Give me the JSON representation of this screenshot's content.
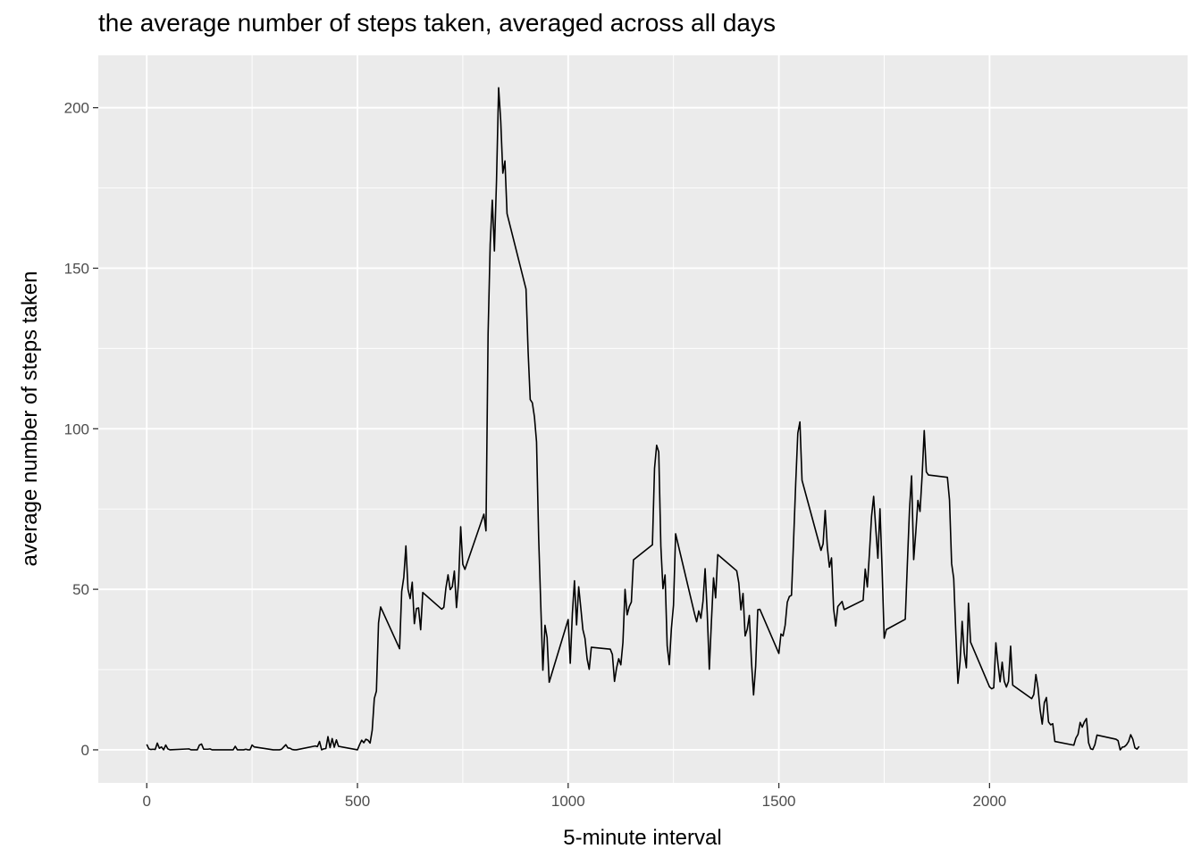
{
  "chart_data": {
    "type": "line",
    "title": "the average number of steps taken, averaged across all days",
    "xlabel": "5-minute interval",
    "ylabel": "average number of steps taken",
    "xlim": [
      -115,
      2470
    ],
    "ylim": [
      -10.3,
      216.3
    ],
    "x_ticks": [
      0,
      500,
      1000,
      1500,
      2000
    ],
    "x_tick_labels": [
      "0",
      "500",
      "1000",
      "1500",
      "2000"
    ],
    "y_ticks": [
      0,
      50,
      100,
      150,
      200
    ],
    "y_tick_labels": [
      "0",
      "50",
      "100",
      "150",
      "200"
    ],
    "grid": true,
    "legend": "none",
    "colors": {
      "panel_bg": "#ebebeb",
      "grid": "#ffffff",
      "line": "#000000",
      "tick_text": "#4d4d4d"
    },
    "series": [
      {
        "x": [
          0,
          5,
          10,
          15,
          20,
          25,
          30,
          35,
          40,
          45,
          50,
          55,
          100,
          105,
          110,
          115,
          120,
          125,
          130,
          135,
          140,
          145,
          150,
          155,
          200,
          205,
          210,
          215,
          220,
          225,
          230,
          235,
          240,
          245,
          250,
          255,
          300,
          305,
          310,
          315,
          320,
          325,
          330,
          335,
          340,
          345,
          350,
          355,
          400,
          405,
          410,
          415,
          420,
          425,
          430,
          435,
          440,
          445,
          450,
          455,
          500,
          505,
          510,
          515,
          520,
          525,
          530,
          535,
          540,
          545,
          550,
          555,
          600,
          605,
          610,
          615,
          620,
          625,
          630,
          635,
          640,
          645,
          650,
          655,
          700,
          705,
          710,
          715,
          720,
          725,
          730,
          735,
          740,
          745,
          750,
          755,
          800,
          805,
          810,
          815,
          820,
          825,
          830,
          835,
          840,
          845,
          850,
          855,
          900,
          905,
          910,
          915,
          920,
          925,
          930,
          935,
          940,
          945,
          950,
          955,
          1000,
          1005,
          1010,
          1015,
          1020,
          1025,
          1030,
          1035,
          1040,
          1045,
          1050,
          1055,
          1100,
          1105,
          1110,
          1115,
          1120,
          1125,
          1130,
          1135,
          1140,
          1145,
          1150,
          1155,
          1200,
          1205,
          1210,
          1215,
          1220,
          1225,
          1230,
          1235,
          1240,
          1245,
          1250,
          1255,
          1300,
          1305,
          1310,
          1315,
          1320,
          1325,
          1330,
          1335,
          1340,
          1345,
          1350,
          1355,
          1400,
          1405,
          1410,
          1415,
          1420,
          1425,
          1430,
          1435,
          1440,
          1445,
          1450,
          1455,
          1500,
          1505,
          1510,
          1515,
          1520,
          1525,
          1530,
          1535,
          1540,
          1545,
          1550,
          1555,
          1600,
          1605,
          1610,
          1615,
          1620,
          1625,
          1630,
          1635,
          1640,
          1645,
          1650,
          1655,
          1700,
          1705,
          1710,
          1715,
          1720,
          1725,
          1730,
          1735,
          1740,
          1745,
          1750,
          1755,
          1800,
          1805,
          1810,
          1815,
          1820,
          1825,
          1830,
          1835,
          1840,
          1845,
          1850,
          1855,
          1900,
          1905,
          1910,
          1915,
          1920,
          1925,
          1930,
          1935,
          1940,
          1945,
          1950,
          1955,
          2000,
          2005,
          2010,
          2015,
          2020,
          2025,
          2030,
          2035,
          2040,
          2045,
          2050,
          2055,
          2100,
          2105,
          2110,
          2115,
          2120,
          2125,
          2130,
          2135,
          2140,
          2145,
          2150,
          2155,
          2200,
          2205,
          2210,
          2215,
          2220,
          2225,
          2230,
          2235,
          2240,
          2245,
          2250,
          2255,
          2300,
          2305,
          2310,
          2315,
          2320,
          2325,
          2330,
          2335,
          2340,
          2345,
          2350,
          2355
        ],
        "y": [
          1.7,
          0.3,
          0.1,
          0.2,
          0.1,
          2.1,
          0.5,
          0.9,
          0.0,
          1.5,
          0.3,
          0.0,
          0.3,
          0.0,
          0.0,
          0.0,
          0.0,
          1.5,
          1.8,
          0.2,
          0.2,
          0.2,
          0.3,
          0.0,
          0.0,
          0.0,
          1.1,
          0.0,
          0.0,
          0.0,
          0.0,
          0.2,
          0.0,
          0.0,
          1.5,
          0.9,
          0.0,
          0.0,
          0.0,
          0.0,
          0.2,
          0.9,
          1.6,
          0.6,
          0.5,
          0.1,
          0.0,
          0.0,
          1.2,
          1.0,
          2.6,
          0.0,
          0.3,
          0.4,
          4.1,
          0.7,
          3.5,
          0.8,
          3.1,
          1.1,
          0.0,
          1.6,
          3.0,
          2.2,
          3.3,
          3.0,
          2.1,
          6.1,
          16.0,
          18.3,
          39.5,
          44.5,
          31.5,
          49.3,
          53.8,
          63.5,
          50.0,
          47.1,
          52.2,
          39.3,
          44.0,
          44.2,
          37.4,
          49.0,
          43.8,
          44.4,
          50.5,
          54.5,
          49.9,
          50.8,
          55.7,
          44.3,
          52.3,
          69.5,
          57.8,
          56.2,
          73.4,
          68.2,
          129.4,
          157.5,
          171.2,
          155.4,
          177.3,
          206.2,
          195.9,
          179.6,
          183.4,
          167.0,
          143.5,
          124.0,
          109.1,
          108.1,
          103.7,
          95.9,
          66.2,
          45.2,
          24.8,
          38.8,
          34.98,
          21.06,
          40.57,
          26.98,
          42.42,
          52.66,
          38.92,
          50.79,
          44.28,
          37.42,
          34.7,
          28.34,
          25.09,
          31.94,
          31.36,
          29.68,
          21.32,
          25.55,
          28.38,
          26.47,
          33.43,
          49.98,
          42.04,
          44.6,
          46.04,
          59.19,
          63.87,
          87.7,
          94.85,
          92.77,
          63.4,
          50.17,
          54.47,
          32.42,
          26.53,
          37.74,
          45.06,
          67.28,
          42.34,
          39.88,
          43.26,
          40.98,
          46.25,
          56.43,
          42.75,
          25.13,
          39.97,
          53.55,
          47.32,
          60.81,
          55.75,
          51.96,
          43.58,
          48.7,
          35.47,
          37.55,
          41.85,
          27.51,
          17.11,
          26.08,
          43.62,
          43.77,
          30.02,
          36.07,
          35.49,
          38.85,
          45.96,
          47.75,
          48.13,
          65.32,
          82.91,
          98.66,
          102.11,
          83.96,
          62.13,
          64.13,
          74.55,
          63.17,
          56.91,
          59.77,
          43.87,
          38.57,
          44.66,
          45.45,
          46.21,
          43.68,
          46.62,
          56.3,
          50.72,
          61.23,
          72.72,
          78.94,
          68.94,
          59.66,
          75.09,
          56.51,
          34.77,
          37.45,
          40.68,
          58.02,
          74.7,
          85.32,
          59.26,
          67.77,
          77.7,
          74.25,
          85.34,
          99.45,
          86.58,
          85.61,
          84.87,
          77.83,
          58.04,
          53.36,
          36.32,
          20.72,
          27.4,
          40.02,
          30.21,
          25.55,
          45.66,
          33.53,
          19.62,
          19.02,
          19.34,
          33.34,
          26.81,
          21.17,
          27.3,
          21.34,
          19.55,
          21.32,
          32.3,
          20.15,
          15.94,
          17.23,
          23.45,
          19.25,
          12.46,
          8.02,
          14.66,
          16.3,
          8.68,
          7.79,
          8.13,
          2.62,
          1.45,
          3.68,
          4.81,
          8.51,
          7.08,
          8.7,
          9.75,
          2.2,
          0.32,
          0.11,
          1.6,
          4.6,
          3.3,
          2.85,
          0.0,
          0.83,
          0.96,
          1.58,
          2.6,
          4.7,
          3.3,
          0.64,
          0.23,
          1.08
        ]
      }
    ]
  }
}
